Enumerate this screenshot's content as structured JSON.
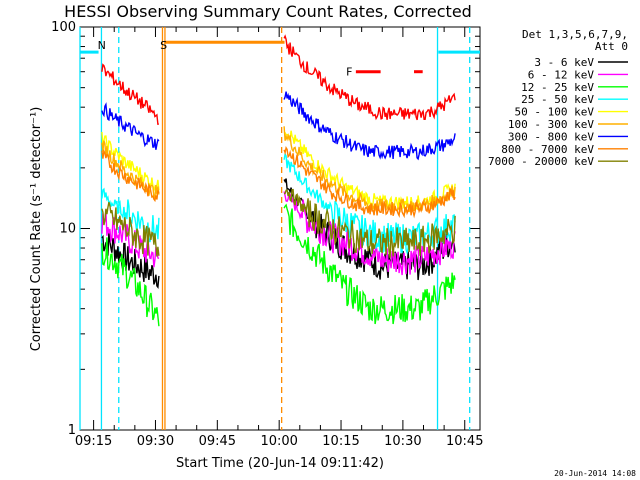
{
  "chart_data": {
    "type": "line",
    "title": "HESSI Observing Summary Count Rates, Corrected",
    "xlabel": "Start Time (20-Jun-14 09:11:42)",
    "ylabel": "Corrected Count Rate (s⁻¹ detector⁻¹)",
    "y_scale": "log",
    "ylim": [
      1,
      100
    ],
    "xlim_minutes_of_day": [
      551.7,
      648.7
    ],
    "x_tick_labels": [
      "09:15",
      "09:30",
      "09:45",
      "10:00",
      "10:15",
      "10:30",
      "10:45"
    ],
    "x_tick_minutes": [
      555,
      570,
      585,
      600,
      615,
      630,
      645
    ],
    "y_tick_labels": [
      "1",
      "10",
      "100"
    ],
    "y_tick_values": [
      1,
      10,
      100
    ],
    "legend_header": [
      "Det 1,3,5,6,7,9,",
      "Att 0"
    ],
    "legend_placement": "right",
    "footer": "20-Jun-2014 14:08",
    "flags": [
      {
        "label": "N",
        "color": "#00e5ff",
        "start": 556.0,
        "end": 556.0
      },
      {
        "label": "S",
        "color": "#ff8c00",
        "start": 571.0,
        "end": 571.0
      },
      {
        "label": "F",
        "color": "#ff0000",
        "start": 617.0,
        "end": 623.0
      }
    ],
    "flag_bars": [
      {
        "color": "#00e5ff",
        "start": 551.7,
        "end": 556.2,
        "y": 75
      },
      {
        "color": "#ff8c00",
        "start": 572.1,
        "end": 601.3,
        "y": 84
      },
      {
        "color": "#ff0000",
        "start": 618.6,
        "end": 624.6,
        "y": 60
      },
      {
        "color": "#ff0000",
        "start": 632.7,
        "end": 634.8,
        "y": 60
      },
      {
        "color": "#00e5ff",
        "start": 638.6,
        "end": 648.7,
        "y": 75
      }
    ],
    "vlines": [
      {
        "x": 551.7,
        "color": "#00e5ff",
        "style": "solid"
      },
      {
        "x": 556.9,
        "color": "#00e5ff",
        "style": "solid"
      },
      {
        "x": 561.1,
        "color": "#00e5ff",
        "style": "dashed"
      },
      {
        "x": 571.7,
        "color": "#ff8c00",
        "style": "solid"
      },
      {
        "x": 572.3,
        "color": "#ff8c00",
        "style": "solid"
      },
      {
        "x": 600.6,
        "color": "#ff8c00",
        "style": "dashed"
      },
      {
        "x": 638.4,
        "color": "#00e5ff",
        "style": "solid"
      },
      {
        "x": 646.2,
        "color": "#00e5ff",
        "style": "dashed"
      }
    ],
    "series": [
      {
        "name": "3 - 6 keV",
        "color": "#000000",
        "segments": [
          {
            "x": [
              557.0,
              560.0,
              563.0,
              566.0,
              569.0,
              570.9
            ],
            "y": [
              9,
              8,
              7,
              6.5,
              6,
              6
            ]
          },
          {
            "x": [
              601.2,
              604.0,
              607.0,
              610.0,
              613.0,
              616.0,
              619.0,
              622.0,
              625.0,
              628.0,
              631.0,
              634.0,
              637.0,
              640.0,
              642.7
            ],
            "y": [
              17,
              14,
              12,
              10,
              9,
              8,
              7.5,
              7,
              6.5,
              6.5,
              6.5,
              6.5,
              7,
              8,
              9
            ]
          }
        ]
      },
      {
        "name": "6 - 12 keV",
        "color": "#ff00ff",
        "segments": [
          {
            "x": [
              557.0,
              560.0,
              563.0,
              566.0,
              569.0,
              570.9
            ],
            "y": [
              11,
              10,
              9,
              8,
              7.5,
              7
            ]
          },
          {
            "x": [
              601.2,
              604.0,
              607.0,
              610.0,
              613.0,
              616.0,
              619.0,
              622.0,
              625.0,
              628.0,
              631.0,
              634.0,
              637.0,
              640.0,
              642.7
            ],
            "y": [
              15,
              13,
              11,
              10,
              9,
              8.5,
              8,
              7.5,
              7,
              7,
              7,
              7,
              7.5,
              8,
              8.5
            ]
          }
        ]
      },
      {
        "name": "12 - 25 keV",
        "color": "#00ff00",
        "segments": [
          {
            "x": [
              557.0,
              560.0,
              563.0,
              566.0,
              569.0,
              570.9
            ],
            "y": [
              8,
              7,
              6,
              5,
              4,
              3.5
            ]
          },
          {
            "x": [
              601.2,
              604.0,
              607.0,
              610.0,
              613.0,
              616.0,
              619.0,
              622.0,
              625.0,
              628.0,
              631.0,
              634.0,
              637.0,
              640.0,
              642.7
            ],
            "y": [
              12,
              10,
              8.5,
              7,
              6,
              5,
              4.5,
              4,
              4,
              4,
              4,
              4,
              4.5,
              5,
              5.5
            ]
          }
        ]
      },
      {
        "name": "25 - 50 keV",
        "color": "#00ffff",
        "segments": [
          {
            "x": [
              557.0,
              560.0,
              563.0,
              566.0,
              569.0,
              570.9
            ],
            "y": [
              15,
              13,
              12,
              11,
              10,
              9.5
            ]
          },
          {
            "x": [
              601.2,
              604.0,
              607.0,
              610.0,
              613.0,
              616.0,
              619.0,
              622.0,
              625.0,
              628.0,
              631.0,
              634.0,
              637.0,
              640.0,
              642.7
            ],
            "y": [
              22,
              19,
              16,
              14,
              12,
              11,
              10,
              9.5,
              9,
              9,
              9,
              9,
              9.5,
              10,
              10.5
            ]
          }
        ]
      },
      {
        "name": "50 - 100 keV",
        "color": "#ffff00",
        "segments": [
          {
            "x": [
              557.0,
              560.0,
              563.0,
              566.0,
              569.0,
              570.9
            ],
            "y": [
              28,
              24,
              21,
              19,
              17,
              16
            ]
          },
          {
            "x": [
              601.2,
              604.0,
              607.0,
              610.0,
              613.0,
              616.0,
              619.0,
              622.0,
              625.0,
              628.0,
              631.0,
              634.0,
              637.0,
              640.0,
              642.7
            ],
            "y": [
              32,
              27,
              23,
              20,
              18,
              16,
              15,
              14,
              13.5,
              13.5,
              13.5,
              13.5,
              14,
              15,
              16
            ]
          }
        ]
      },
      {
        "name": "100 - 300 keV",
        "color": "#ffb000",
        "segments": [
          {
            "x": [
              557.0,
              560.0,
              563.0,
              566.0,
              569.0,
              570.9
            ],
            "y": [
              26,
              22,
              19,
              17,
              15.5,
              15
            ]
          },
          {
            "x": [
              601.2,
              604.0,
              607.0,
              610.0,
              613.0,
              616.0,
              619.0,
              622.0,
              625.0,
              628.0,
              631.0,
              634.0,
              637.0,
              640.0,
              642.7
            ],
            "y": [
              30,
              25,
              21,
              18.5,
              16.5,
              15,
              14,
              13,
              13,
              13,
              13,
              13,
              13.5,
              14.5,
              15.5
            ]
          }
        ]
      },
      {
        "name": "300 - 800 keV",
        "color": "#0000ff",
        "segments": [
          {
            "x": [
              557.0,
              560.0,
              563.0,
              566.0,
              569.0,
              570.9
            ],
            "y": [
              40,
              35,
              32,
              29,
              27,
              26
            ]
          },
          {
            "x": [
              601.2,
              604.0,
              607.0,
              610.0,
              613.0,
              616.0,
              619.0,
              622.0,
              625.0,
              628.0,
              631.0,
              634.0,
              637.0,
              640.0,
              642.7
            ],
            "y": [
              47,
              41,
              36,
              32,
              29,
              27,
              25,
              24,
              24,
              24,
              24,
              24,
              25,
              26,
              28
            ]
          }
        ]
      },
      {
        "name": "800 - 7000 keV",
        "color": "#ff8000",
        "segments": [
          {
            "x": [
              557.0,
              560.0,
              563.0,
              566.0,
              569.0,
              570.9
            ],
            "y": [
              23,
              20,
              18,
              16.5,
              15,
              14.5
            ]
          },
          {
            "x": [
              601.2,
              604.0,
              607.0,
              610.0,
              613.0,
              616.0,
              619.0,
              622.0,
              625.0,
              628.0,
              631.0,
              634.0,
              637.0,
              640.0,
              642.7
            ],
            "y": [
              26,
              22,
              19,
              17,
              15,
              14,
              13,
              12.5,
              12.5,
              12.5,
              12.5,
              12.5,
              13,
              14,
              15
            ]
          }
        ]
      },
      {
        "name": "7000 - 20000 keV",
        "color": "#808000",
        "segments": [
          {
            "x": [
              557.0,
              560.0,
              563.0,
              566.0,
              569.0,
              570.9
            ],
            "y": [
              12,
              11,
              10,
              9,
              8.5,
              8
            ]
          },
          {
            "x": [
              601.2,
              604.0,
              607.0,
              610.0,
              613.0,
              616.0,
              619.0,
              622.0,
              625.0,
              628.0,
              631.0,
              634.0,
              637.0,
              640.0,
              642.7
            ],
            "y": [
              16,
              14,
              12,
              11,
              10,
              9.5,
              9,
              8.5,
              8.5,
              8.5,
              8.5,
              8.5,
              9,
              9.5,
              10
            ]
          }
        ]
      },
      {
        "name": "",
        "color": "#ff0000",
        "segments": [
          {
            "x": [
              557.0,
              560.0,
              563.0,
              566.0,
              569.0,
              570.9
            ],
            "y": [
              62,
              55,
              48,
              43,
              38,
              35
            ]
          },
          {
            "x": [
              601.2,
              604.0,
              607.0,
              610.0,
              613.0,
              616.0,
              619.0,
              622.0,
              625.0,
              628.0,
              631.0,
              634.0,
              637.0,
              640.0,
              642.7
            ],
            "y": [
              85,
              72,
              62,
              55,
              49,
              45,
              41,
              39,
              37,
              37,
              37,
              37,
              38,
              41,
              45
            ]
          }
        ]
      }
    ]
  }
}
